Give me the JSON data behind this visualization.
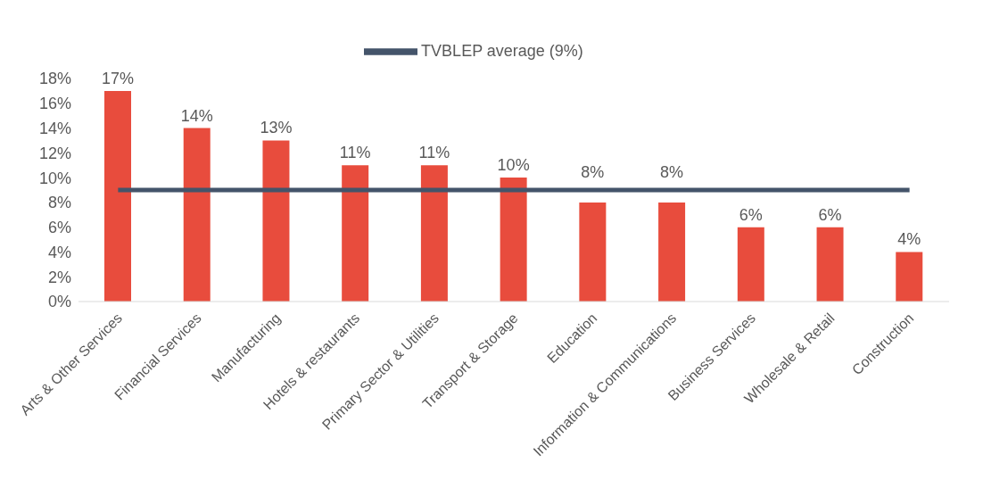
{
  "chart_data": {
    "type": "bar",
    "categories": [
      "Arts & Other Services",
      "Financial Services",
      "Manufacturing",
      "Hotels & restaurants",
      "Primary Sector & Utilities",
      "Transport & Storage",
      "Education",
      "Information & Communications",
      "Business Services",
      "Wholesale & Retail",
      "Construction"
    ],
    "series": [
      {
        "color": "#e84c3d",
        "values": [
          17,
          14,
          13,
          11,
          11,
          10,
          8,
          8,
          6,
          6,
          4
        ],
        "value_labels": [
          "17%",
          "14%",
          "13%",
          "11%",
          "11%",
          "10%",
          "8%",
          "8%",
          "6%",
          "6%",
          "4%"
        ]
      },
      {
        "type": "line",
        "name": "TVBLEP average (9%)",
        "color": "#44546a",
        "values": [
          9,
          9,
          9,
          9,
          9,
          9,
          9,
          9,
          9,
          9,
          9
        ]
      }
    ],
    "ylim": [
      0,
      18
    ],
    "yticks": [
      {
        "value": 0,
        "label": "0%"
      },
      {
        "value": 2,
        "label": "2%"
      },
      {
        "value": 4,
        "label": "4%"
      },
      {
        "value": 6,
        "label": "6%"
      },
      {
        "value": 8,
        "label": "8%"
      },
      {
        "value": 10,
        "label": "10%"
      },
      {
        "value": 12,
        "label": "12%"
      },
      {
        "value": 14,
        "label": "14%"
      },
      {
        "value": 16,
        "label": "16%"
      },
      {
        "value": 18,
        "label": "18%"
      }
    ],
    "grid": false,
    "legend": "top",
    "marker": "none"
  }
}
